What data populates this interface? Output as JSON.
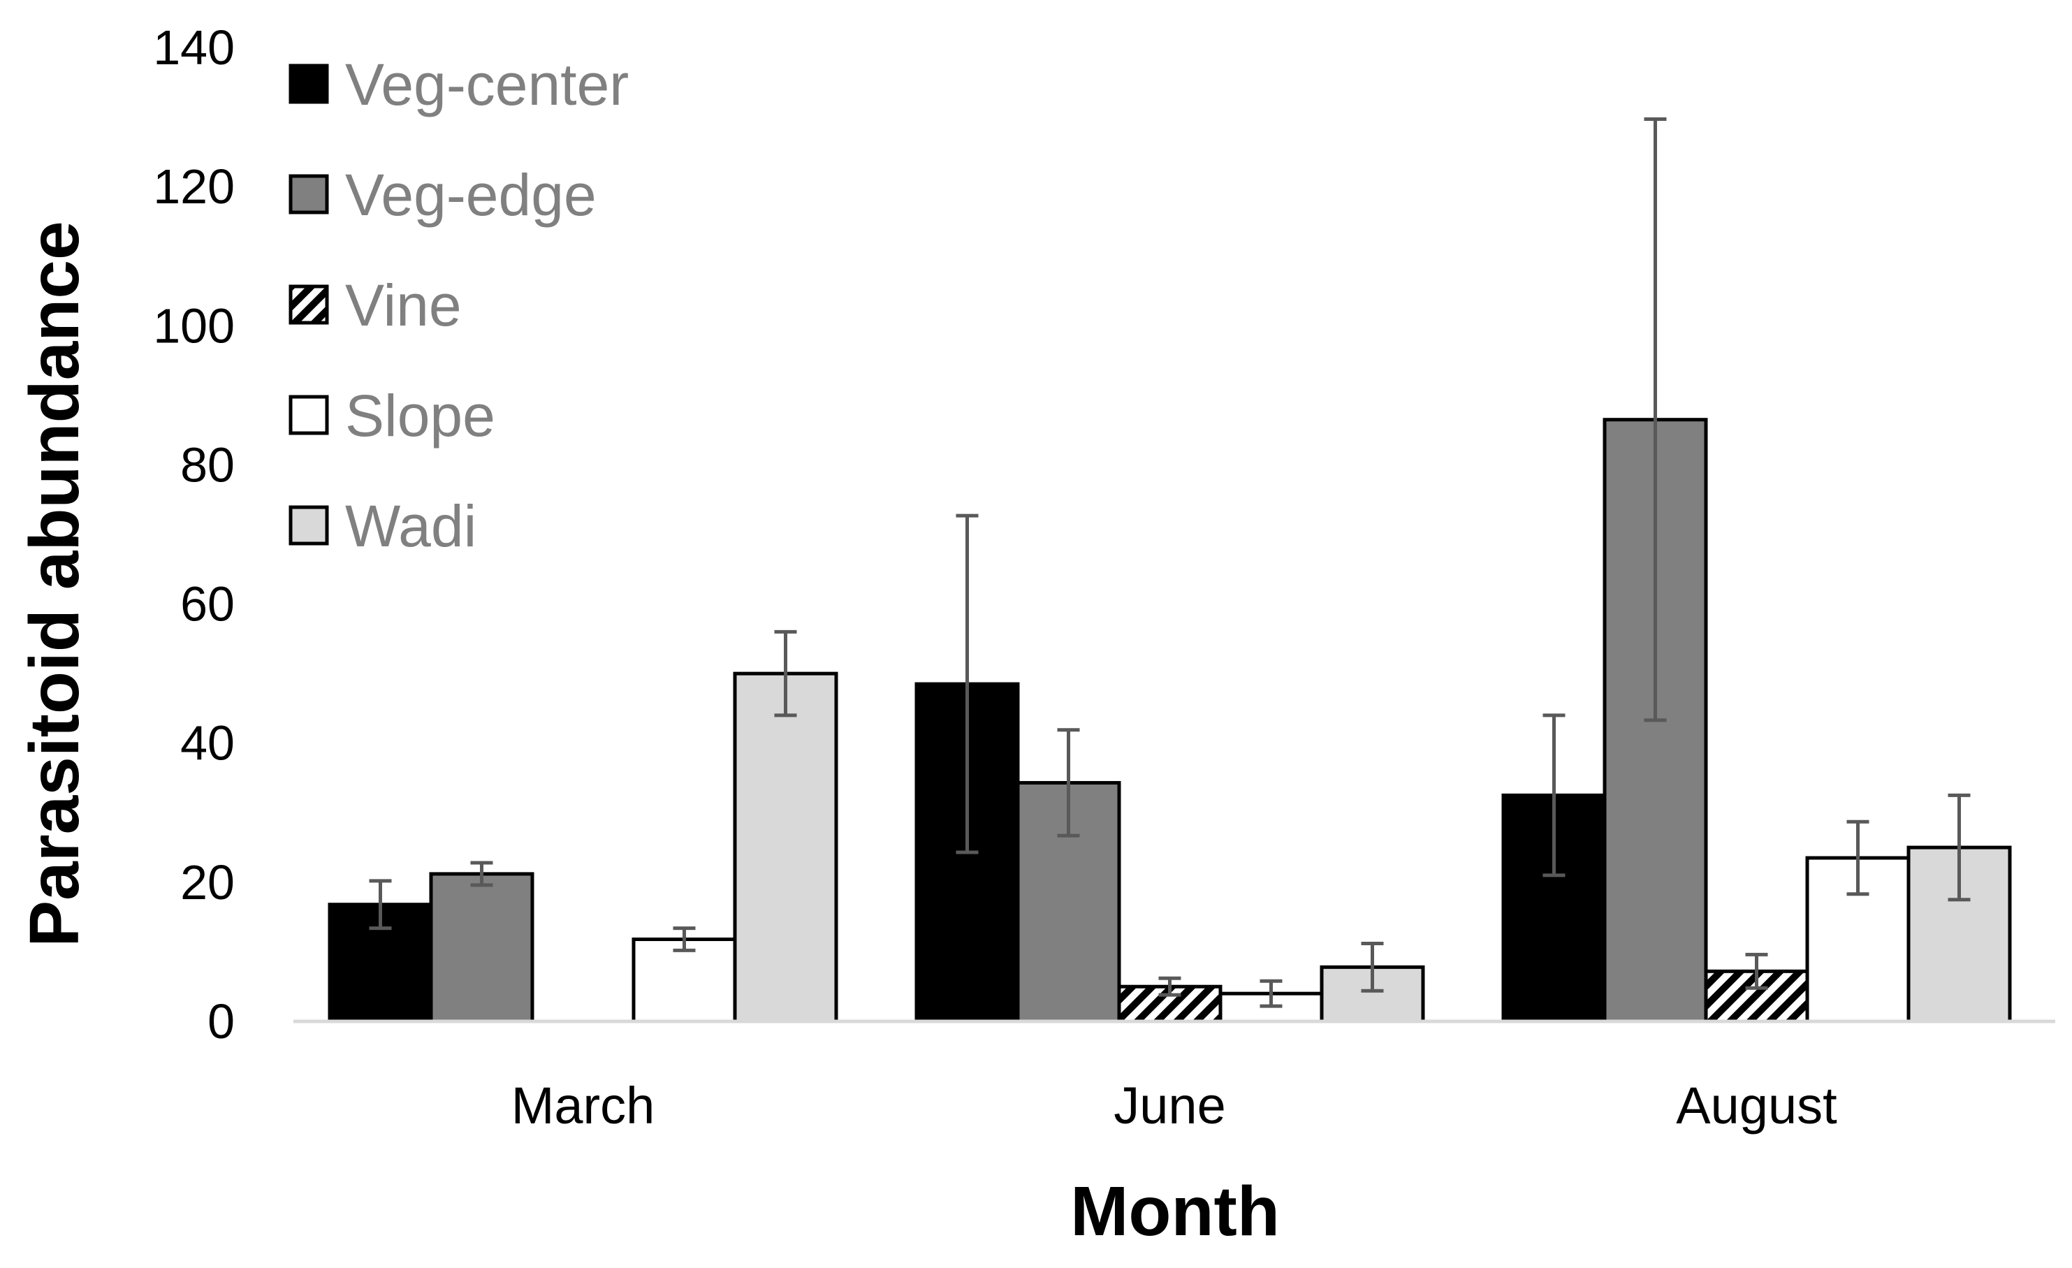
{
  "chart_data": {
    "type": "bar",
    "title": "",
    "xlabel": "Month",
    "ylabel": "Parasitoid abundance",
    "ylim": [
      0,
      140
    ],
    "yticks": [
      0,
      20,
      40,
      60,
      80,
      100,
      120,
      140
    ],
    "grid": false,
    "legend_position": "top-left",
    "categories": [
      "March",
      "June",
      "August"
    ],
    "series": [
      {
        "name": "Veg-center",
        "fill": "#000000",
        "pattern": "solid",
        "values": [
          16.8,
          48.5,
          32.5
        ],
        "errors": [
          3.4,
          24.2,
          11.5
        ]
      },
      {
        "name": "Veg-edge",
        "fill": "#808080",
        "pattern": "solid",
        "values": [
          21.2,
          34.3,
          86.5
        ],
        "errors": [
          1.6,
          7.6,
          43.2
        ]
      },
      {
        "name": "Vine",
        "fill": "#ffffff",
        "pattern": "diagonal-hatch",
        "values": [
          0,
          5.0,
          7.2
        ],
        "errors": [
          0,
          1.2,
          2.4
        ]
      },
      {
        "name": "Slope",
        "fill": "#ffffff",
        "pattern": "solid",
        "values": [
          11.8,
          4.0,
          23.5
        ],
        "errors": [
          1.6,
          1.8,
          5.2
        ]
      },
      {
        "name": "Wadi",
        "fill": "#d9d9d9",
        "pattern": "solid",
        "values": [
          50.0,
          7.8,
          25.0
        ],
        "errors": [
          6.0,
          3.4,
          7.5
        ]
      }
    ]
  }
}
